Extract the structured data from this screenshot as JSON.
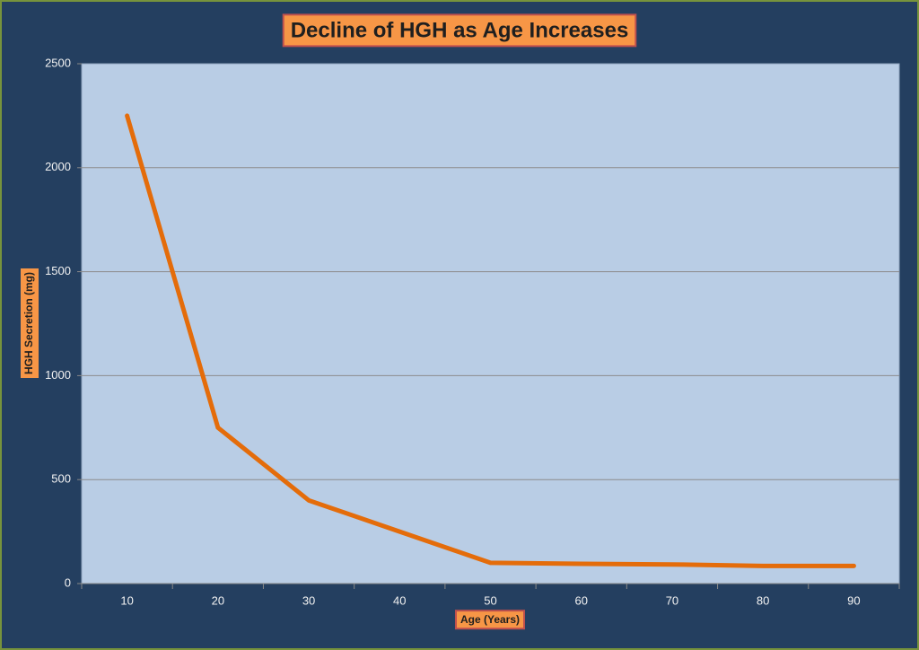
{
  "chart_data": {
    "type": "line",
    "title": "Decline of HGH as Age Increases",
    "x_label": "Age (Years)",
    "y_label": "HGH Secretion (mg)",
    "categories": [
      "10",
      "20",
      "30",
      "40",
      "50",
      "60",
      "70",
      "80",
      "90"
    ],
    "values": [
      2250,
      750,
      400,
      250,
      100,
      95,
      92,
      85,
      85
    ],
    "color": "#e46c0a",
    "ylim": [
      0,
      2500
    ],
    "yticks": [
      0,
      500,
      1000,
      1500,
      2000,
      2500
    ],
    "grid": true
  }
}
